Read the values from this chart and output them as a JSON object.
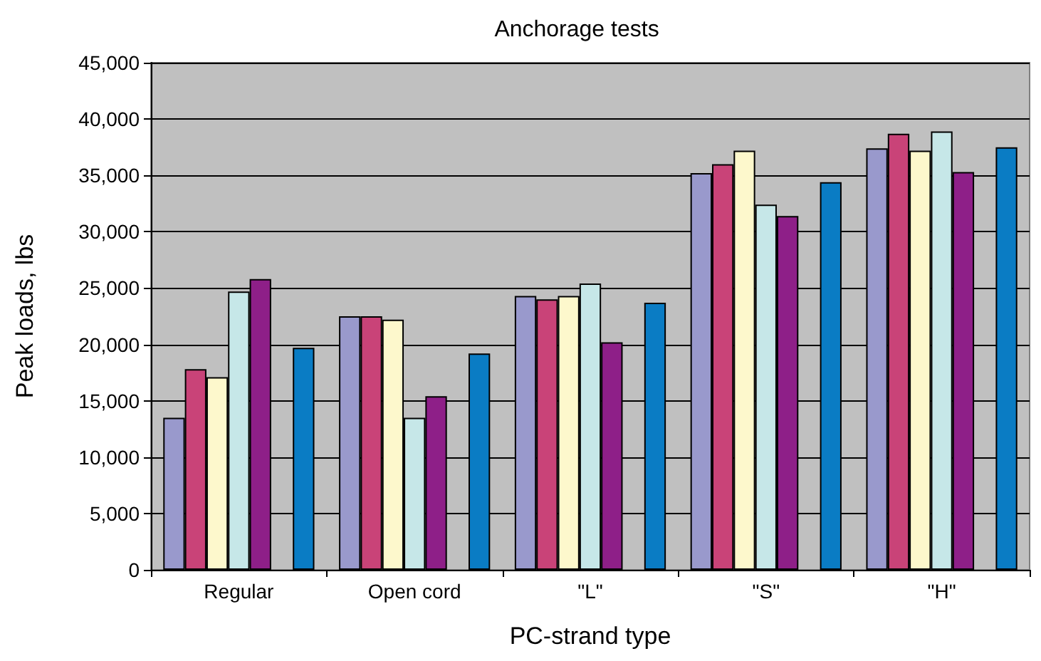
{
  "chart_data": {
    "type": "bar",
    "title": "Anchorage tests",
    "xlabel": "PC-strand type",
    "ylabel": "Peak loads, lbs",
    "categories": [
      "Regular",
      "Open cord",
      "\"L\"",
      "\"S\"",
      "\"H\""
    ],
    "series": [
      {
        "color": "#9999cc",
        "values": [
          13500,
          22500,
          24300,
          35200,
          37400
        ]
      },
      {
        "color": "#c94378",
        "values": [
          17800,
          22500,
          24000,
          36000,
          38700
        ]
      },
      {
        "color": "#fdf8cc",
        "values": [
          17100,
          22200,
          24300,
          37200,
          37200
        ]
      },
      {
        "color": "#c6e7e8",
        "values": [
          24700,
          13500,
          25400,
          32400,
          38900
        ]
      },
      {
        "color": "#8e1f88",
        "values": [
          25800,
          15400,
          20200,
          31400,
          35300
        ]
      },
      {
        "color": "#0a7cc4",
        "values": [
          19700,
          19200,
          23700,
          34400,
          37500
        ]
      }
    ],
    "ylim": [
      0,
      45000
    ],
    "yticks": [
      0,
      {
        "value": 5000,
        "label": "5,000"
      },
      {
        "value": 10000,
        "label": "10,000"
      },
      {
        "value": 15000,
        "label": "15,000"
      },
      {
        "value": 20000,
        "label": "20,000"
      },
      {
        "value": 25000,
        "label": "25,000"
      },
      {
        "value": 30000,
        "label": "30,000"
      },
      {
        "value": 35000,
        "label": "35,000"
      },
      {
        "value": 40000,
        "label": "40,000"
      },
      {
        "value": 45000,
        "label": "45,000"
      }
    ],
    "grid": "y"
  }
}
